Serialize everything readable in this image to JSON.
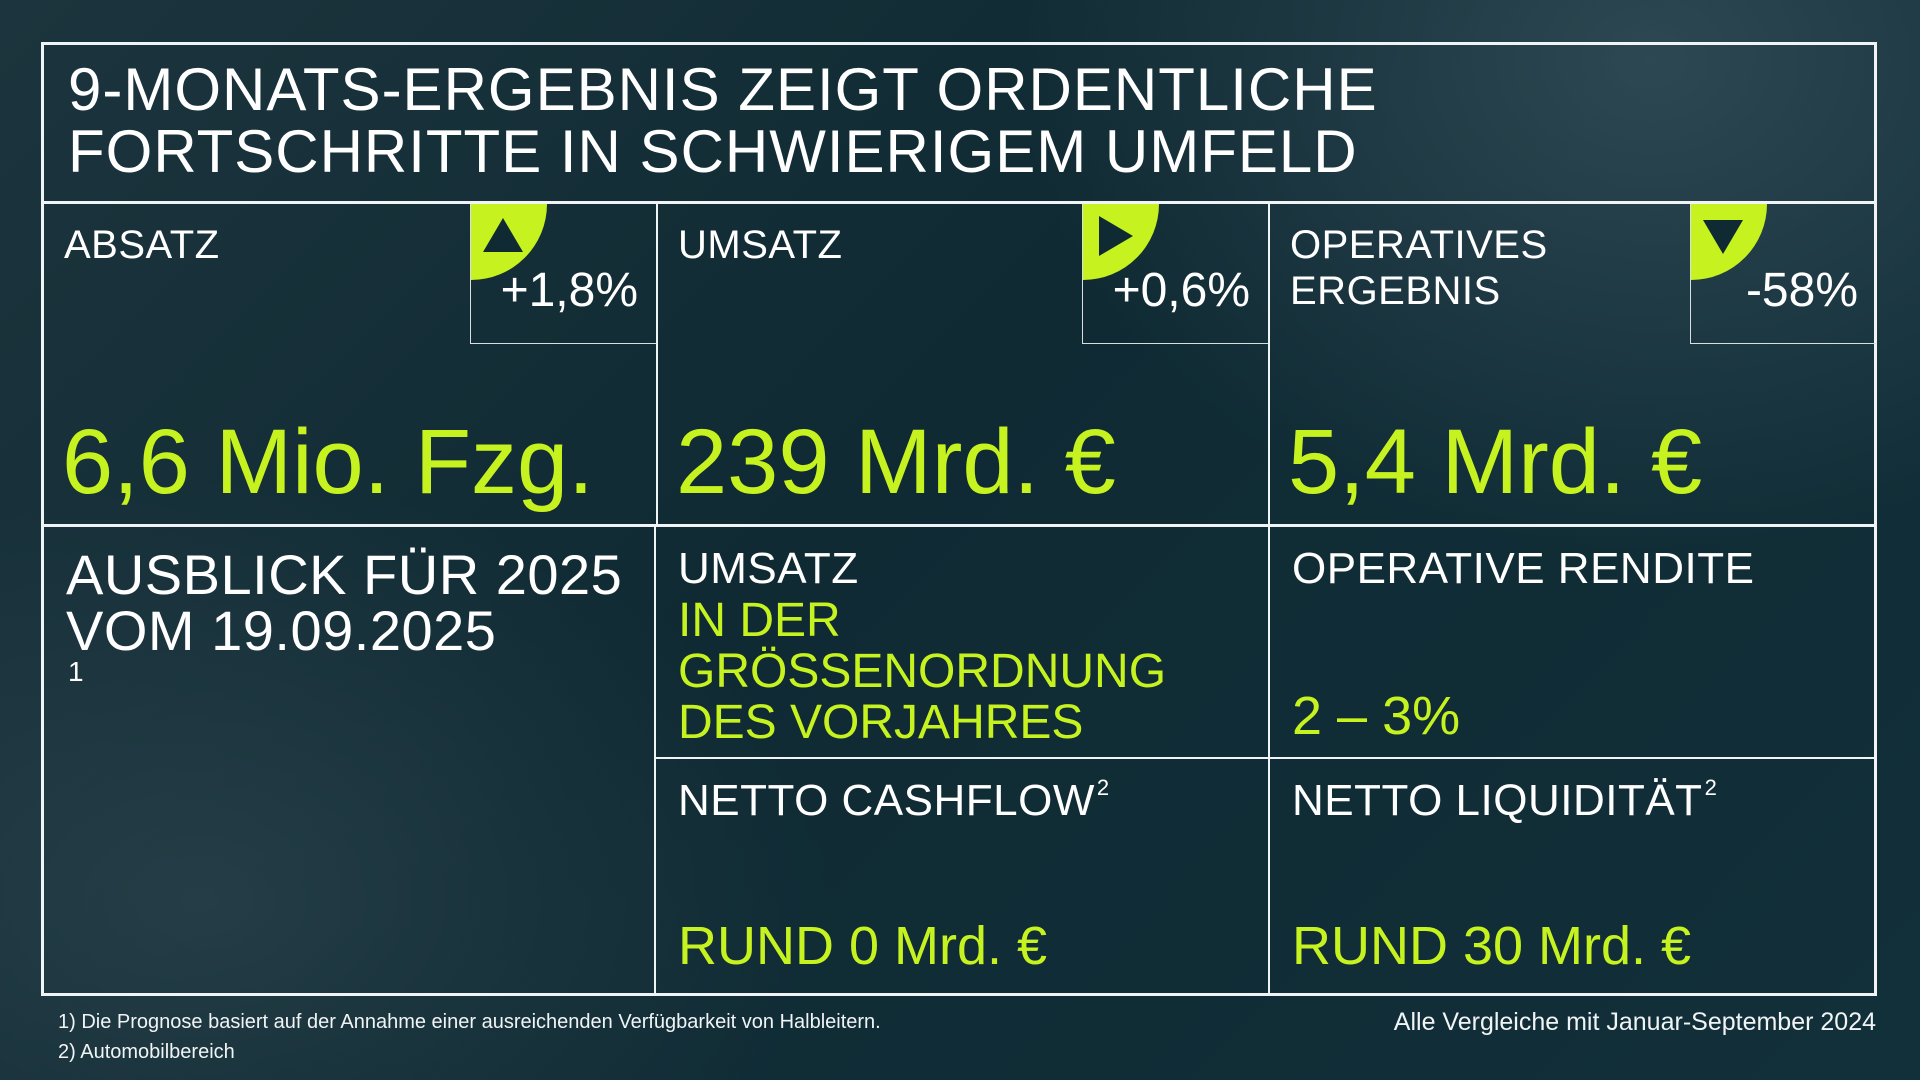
{
  "headline": {
    "line1": "9-MONATS-ERGEBNIS ZEIGT ORDENTLICHE",
    "line2": "FORTSCHRITTE IN SCHWIERIGEM UMFELD"
  },
  "kpis": [
    {
      "label_line1": "ABSATZ",
      "label_line2": "",
      "change": "+1,8%",
      "trend": "up",
      "trend_icon": "triangle-up-icon",
      "value": "6,6 Mio. Fzg."
    },
    {
      "label_line1": "UMSATZ",
      "label_line2": "",
      "change": "+0,6%",
      "trend": "flat",
      "trend_icon": "triangle-right-icon",
      "value": "239 Mrd. €"
    },
    {
      "label_line1": "OPERATIVES",
      "label_line2": "ERGEBNIS",
      "change": "-58%",
      "trend": "down",
      "trend_icon": "triangle-down-icon",
      "value": "5,4 Mrd. €"
    }
  ],
  "outlook": {
    "title_line1": "AUSBLICK FÜR 2025",
    "title_line2": "VOM 19.09.2025",
    "title_sup": "1",
    "revenue": {
      "label": "UMSATZ",
      "value_line1": "IN DER",
      "value_line2": "GRÖSSENORDNUNG",
      "value_line3": "DES VORJAHRES"
    },
    "operating_margin": {
      "label": "OPERATIVE RENDITE",
      "value": "2 – 3%"
    },
    "net_cashflow": {
      "label": "NETTO CASHFLOW",
      "sup": "2",
      "value": "RUND 0 Mrd. €"
    },
    "net_liquidity": {
      "label": "NETTO LIQUIDITÄT",
      "sup": "2",
      "value": "RUND 30 Mrd. €"
    }
  },
  "footnotes": {
    "note1": "1) Die Prognose basiert auf der Annahme einer ausreichenden Verfügbarkeit von Halbleitern.",
    "note2": "2) Automobilbereich"
  },
  "comparison_note": "Alle Vergleiche mit Januar-September 2024",
  "colors": {
    "accent": "#c6f31f",
    "background": "#0f2a33",
    "lines": "#f1f4f5"
  }
}
